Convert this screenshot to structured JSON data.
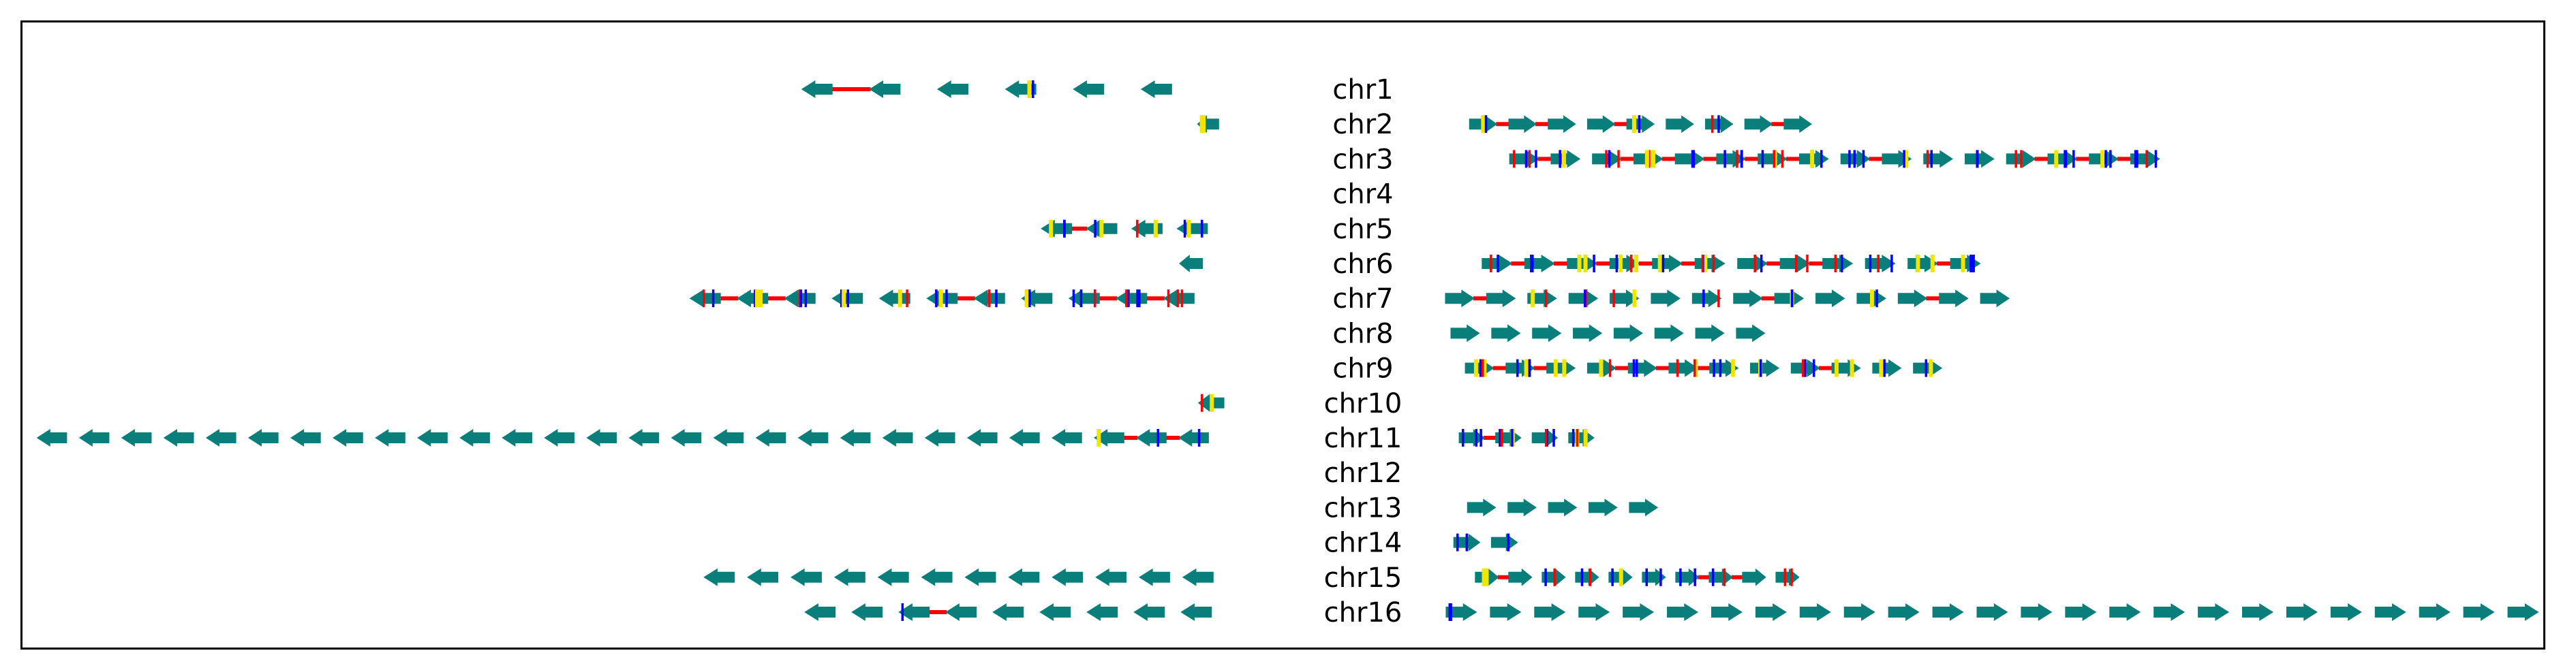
{
  "colors": {
    "arrow": "#0A7E7B",
    "link": "#FF0000",
    "mark_blue": "#0000FF",
    "mark_yellow": "#F2E600",
    "mark_red": "#FF0000"
  },
  "chromosomes": [
    {
      "label": "chr1",
      "left": {
        "arrows": 6,
        "start": 0.615,
        "end": 0.948,
        "detail": "mixed"
      },
      "right": null
    },
    {
      "label": "chr2",
      "left": {
        "arrows": 1,
        "start": 0.95,
        "end": 0.975,
        "detail": "marks"
      },
      "right": {
        "arrows": 9,
        "start": 0.022,
        "end": 0.342,
        "detail": "mixed"
      }
    },
    {
      "label": "chr3",
      "left": null,
      "right": {
        "arrows": 16,
        "start": 0.058,
        "end": 0.657,
        "detail": "dense"
      }
    },
    {
      "label": "chr4",
      "left": null,
      "right": null
    },
    {
      "label": "chr5",
      "left": {
        "arrows": 4,
        "start": 0.82,
        "end": 0.968,
        "detail": "dense"
      },
      "right": null
    },
    {
      "label": "chr6",
      "left": {
        "arrows": 1,
        "start": 0.935,
        "end": 0.962,
        "detail": "plain"
      },
      "right": {
        "arrows": 12,
        "start": 0.033,
        "end": 0.495,
        "detail": "dense"
      }
    },
    {
      "label": "chr7",
      "left": {
        "arrows": 11,
        "start": 0.532,
        "end": 0.958,
        "detail": "dense"
      },
      "right": {
        "arrows": 14,
        "start": 0.0,
        "end": 0.521,
        "detail": "mixed"
      }
    },
    {
      "label": "chr8",
      "left": null,
      "right": {
        "arrows": 8,
        "start": 0.005,
        "end": 0.3,
        "detail": "plain"
      }
    },
    {
      "label": "chr9",
      "left": null,
      "right": {
        "arrows": 12,
        "start": 0.018,
        "end": 0.46,
        "detail": "dense"
      }
    },
    {
      "label": "chr10",
      "left": {
        "arrows": 1,
        "start": 0.95,
        "end": 0.98,
        "detail": "marks"
      },
      "right": null
    },
    {
      "label": "chr11",
      "left": {
        "arrows": 28,
        "start": 0.0,
        "end": 0.968,
        "detail": "tail"
      },
      "right": {
        "arrows": 4,
        "start": 0.013,
        "end": 0.145,
        "detail": "dense"
      }
    },
    {
      "label": "chr12",
      "left": null,
      "right": null
    },
    {
      "label": "chr13",
      "left": null,
      "right": {
        "arrows": 5,
        "start": 0.02,
        "end": 0.203,
        "detail": "plain"
      }
    },
    {
      "label": "chr14",
      "left": null,
      "right": {
        "arrows": 2,
        "start": 0.008,
        "end": 0.076,
        "detail": "marks"
      }
    },
    {
      "label": "chr15",
      "left": {
        "arrows": 12,
        "start": 0.545,
        "end": 0.972,
        "detail": "plain"
      },
      "right": {
        "arrows": 10,
        "start": 0.028,
        "end": 0.33,
        "detail": "mixed"
      }
    },
    {
      "label": "chr16",
      "left": {
        "arrows": 9,
        "start": 0.626,
        "end": 0.972,
        "detail": "link-one"
      },
      "right": {
        "arrows": 25,
        "start": 0.0,
        "end": 1.0,
        "detail": "first-marks"
      }
    }
  ]
}
